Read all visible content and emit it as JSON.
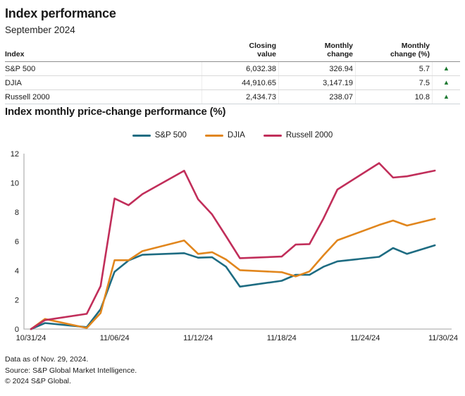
{
  "colors": {
    "text": "#1a1a1a",
    "positive_arrow": "#1f7a33",
    "axis": "#b5b5b5"
  },
  "header": {
    "title": "Index performance",
    "subtitle": "September 2024"
  },
  "table": {
    "arrow_glyph": "▲",
    "columns": [
      {
        "line1": "",
        "line2": "Index"
      },
      {
        "line1": "Closing",
        "line2": "value"
      },
      {
        "line1": "Monthly",
        "line2": "change"
      },
      {
        "line1": "Monthly",
        "line2": "change (%)"
      }
    ],
    "rows": [
      {
        "index": "S&P 500",
        "closing_value": "6,032.38",
        "monthly_change": "326.94",
        "monthly_change_pct": "5.7",
        "direction": "up"
      },
      {
        "index": "DJIA",
        "closing_value": "44,910.65",
        "monthly_change": "3,147.19",
        "monthly_change_pct": "7.5",
        "direction": "up"
      },
      {
        "index": "Russell 2000",
        "closing_value": "2,434.73",
        "monthly_change": "238.07",
        "monthly_change_pct": "10.8",
        "direction": "up"
      }
    ]
  },
  "chart": {
    "title": "Index monthly price-change performance (%)"
  },
  "chart_data": {
    "type": "line",
    "title": "Index monthly price-change performance (%)",
    "x": [
      "10/31/24",
      "11/01/24",
      "11/04/24",
      "11/05/24",
      "11/06/24",
      "11/07/24",
      "11/08/24",
      "11/11/24",
      "11/12/24",
      "11/13/24",
      "11/14/24",
      "11/15/24",
      "11/18/24",
      "11/19/24",
      "11/20/24",
      "11/21/24",
      "11/22/24",
      "11/25/24",
      "11/26/24",
      "11/27/24",
      "11/29/24"
    ],
    "x_day_offsets": [
      0,
      1,
      4,
      5,
      6,
      7,
      8,
      11,
      12,
      13,
      14,
      15,
      18,
      19,
      20,
      21,
      22,
      25,
      26,
      27,
      29
    ],
    "series": [
      {
        "name": "S&P 500",
        "color": "#1e6c82",
        "values": [
          0,
          0.41,
          0.13,
          1.36,
          3.92,
          4.69,
          5.08,
          5.19,
          4.88,
          4.91,
          4.27,
          2.9,
          3.3,
          3.71,
          3.71,
          4.26,
          4.63,
          4.94,
          5.54,
          5.14,
          5.73
        ]
      },
      {
        "name": "DJIA",
        "color": "#e1861d",
        "values": [
          0,
          0.69,
          0.07,
          1.1,
          4.71,
          4.71,
          5.33,
          6.06,
          5.14,
          5.26,
          4.76,
          4.03,
          3.89,
          3.6,
          3.94,
          5.04,
          6.07,
          7.12,
          7.42,
          7.08,
          7.54
        ]
      },
      {
        "name": "Russell 2000",
        "color": "#c12e5a",
        "values": [
          0,
          0.61,
          1.04,
          2.94,
          8.93,
          8.47,
          9.23,
          10.83,
          8.87,
          7.84,
          6.36,
          4.85,
          4.96,
          5.78,
          5.81,
          7.56,
          9.54,
          11.35,
          10.36,
          10.45,
          10.84
        ]
      }
    ],
    "ylim": [
      0,
      12
    ],
    "yticks": [
      0,
      2,
      4,
      6,
      8,
      10,
      12
    ],
    "xticks": {
      "day_offsets": [
        0,
        6,
        12,
        18,
        24,
        30
      ],
      "labels": [
        "10/31/24",
        "11/06/24",
        "11/12/24",
        "11/18/24",
        "11/24/24",
        "11/30/24"
      ]
    },
    "grid": false,
    "legend_position": "top-center"
  },
  "footer": {
    "line1": "Data as of Nov. 29, 2024.",
    "line2": "Source: S&P Global Market Intelligence.",
    "line3": "© 2024 S&P Global."
  }
}
